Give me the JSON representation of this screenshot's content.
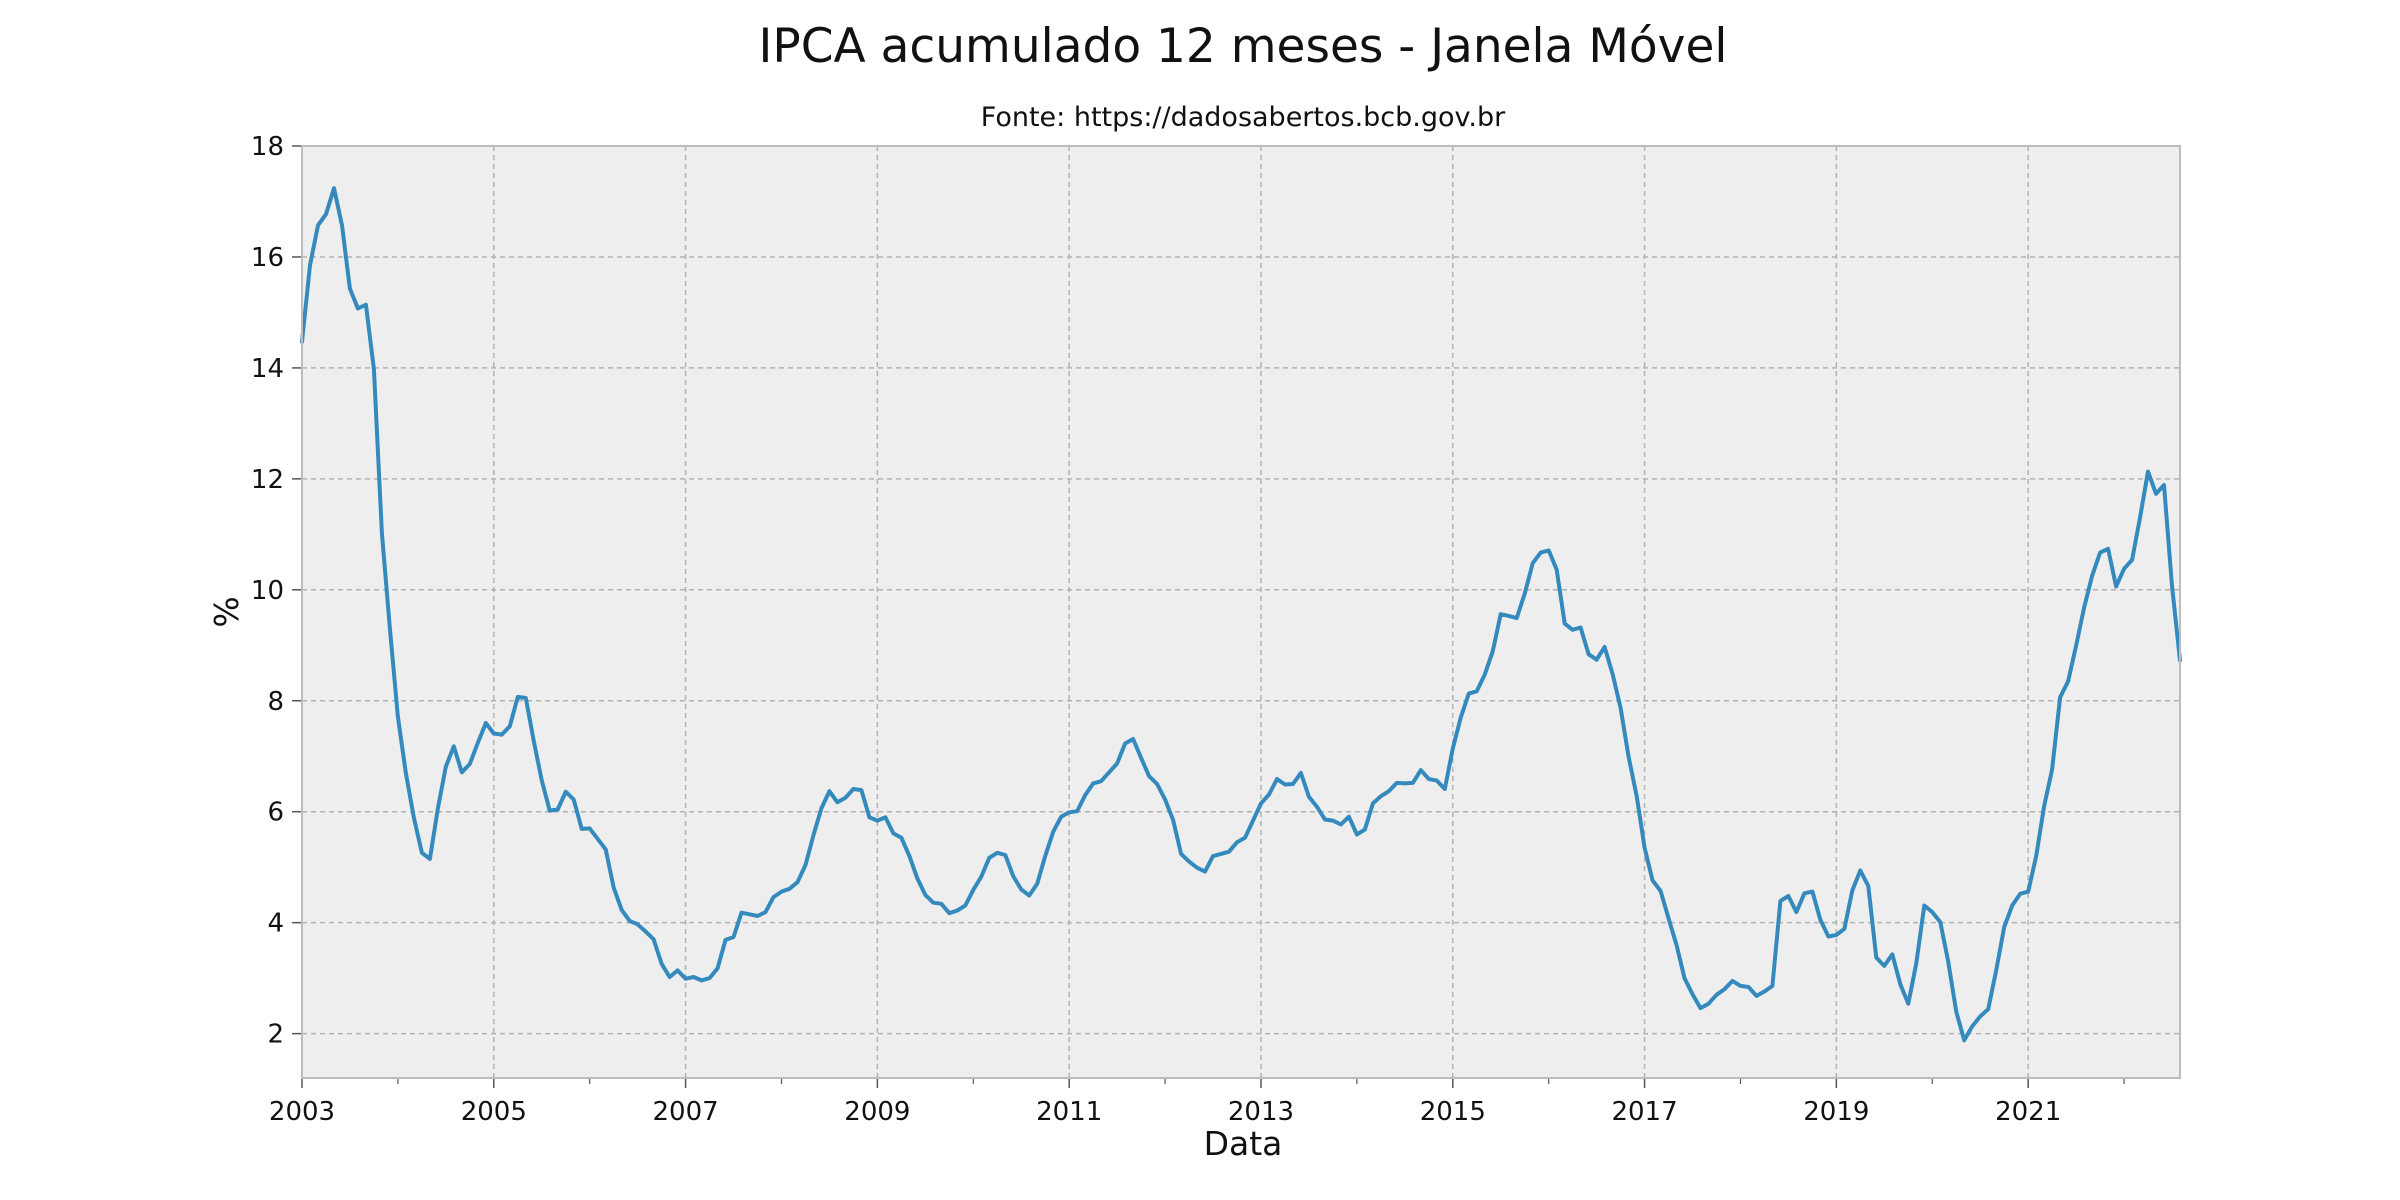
{
  "chart_data": {
    "type": "line",
    "title": "IPCA acumulado 12 meses - Janela Móvel",
    "subtitle": "Fonte: https://dadosabertos.bcb.gov.br",
    "xlabel": "Data",
    "ylabel": "%",
    "xlim": [
      "2003-01",
      "2022-08"
    ],
    "ylim": [
      1.2,
      18
    ],
    "x_ticks": [
      "2003",
      "2005",
      "2007",
      "2009",
      "2011",
      "2013",
      "2015",
      "2017",
      "2019",
      "2021"
    ],
    "y_ticks": [
      2,
      4,
      6,
      8,
      10,
      12,
      14,
      16,
      18
    ],
    "grid": true,
    "legend": "none",
    "series": [
      {
        "color": "#348abd",
        "x": [
          "2003-01",
          "2003-02",
          "2003-03",
          "2003-04",
          "2003-05",
          "2003-06",
          "2003-07",
          "2003-08",
          "2003-09",
          "2003-10",
          "2003-11",
          "2003-12",
          "2004-01",
          "2004-02",
          "2004-03",
          "2004-04",
          "2004-05",
          "2004-06",
          "2004-07",
          "2004-08",
          "2004-09",
          "2004-10",
          "2004-11",
          "2004-12",
          "2005-01",
          "2005-02",
          "2005-03",
          "2005-04",
          "2005-05",
          "2005-06",
          "2005-07",
          "2005-08",
          "2005-09",
          "2005-10",
          "2005-11",
          "2005-12",
          "2006-01",
          "2006-02",
          "2006-03",
          "2006-04",
          "2006-05",
          "2006-06",
          "2006-07",
          "2006-08",
          "2006-09",
          "2006-10",
          "2006-11",
          "2006-12",
          "2007-01",
          "2007-02",
          "2007-03",
          "2007-04",
          "2007-05",
          "2007-06",
          "2007-07",
          "2007-08",
          "2007-09",
          "2007-10",
          "2007-11",
          "2007-12",
          "2008-01",
          "2008-02",
          "2008-03",
          "2008-04",
          "2008-05",
          "2008-06",
          "2008-07",
          "2008-08",
          "2008-09",
          "2008-10",
          "2008-11",
          "2008-12",
          "2009-01",
          "2009-02",
          "2009-03",
          "2009-04",
          "2009-05",
          "2009-06",
          "2009-07",
          "2009-08",
          "2009-09",
          "2009-10",
          "2009-11",
          "2009-12",
          "2010-01",
          "2010-02",
          "2010-03",
          "2010-04",
          "2010-05",
          "2010-06",
          "2010-07",
          "2010-08",
          "2010-09",
          "2010-10",
          "2010-11",
          "2010-12",
          "2011-01",
          "2011-02",
          "2011-03",
          "2011-04",
          "2011-05",
          "2011-06",
          "2011-07",
          "2011-08",
          "2011-09",
          "2011-10",
          "2011-11",
          "2011-12",
          "2012-01",
          "2012-02",
          "2012-03",
          "2012-04",
          "2012-05",
          "2012-06",
          "2012-07",
          "2012-08",
          "2012-09",
          "2012-10",
          "2012-11",
          "2012-12",
          "2013-01",
          "2013-02",
          "2013-03",
          "2013-04",
          "2013-05",
          "2013-06",
          "2013-07",
          "2013-08",
          "2013-09",
          "2013-10",
          "2013-11",
          "2013-12",
          "2014-01",
          "2014-02",
          "2014-03",
          "2014-04",
          "2014-05",
          "2014-06",
          "2014-07",
          "2014-08",
          "2014-09",
          "2014-10",
          "2014-11",
          "2014-12",
          "2015-01",
          "2015-02",
          "2015-03",
          "2015-04",
          "2015-05",
          "2015-06",
          "2015-07",
          "2015-08",
          "2015-09",
          "2015-10",
          "2015-11",
          "2015-12",
          "2016-01",
          "2016-02",
          "2016-03",
          "2016-04",
          "2016-05",
          "2016-06",
          "2016-07",
          "2016-08",
          "2016-09",
          "2016-10",
          "2016-11",
          "2016-12",
          "2017-01",
          "2017-02",
          "2017-03",
          "2017-04",
          "2017-05",
          "2017-06",
          "2017-07",
          "2017-08",
          "2017-09",
          "2017-10",
          "2017-11",
          "2017-12",
          "2018-01",
          "2018-02",
          "2018-03",
          "2018-04",
          "2018-05",
          "2018-06",
          "2018-07",
          "2018-08",
          "2018-09",
          "2018-10",
          "2018-11",
          "2018-12",
          "2019-01",
          "2019-02",
          "2019-03",
          "2019-04",
          "2019-05",
          "2019-06",
          "2019-07",
          "2019-08",
          "2019-09",
          "2019-10",
          "2019-11",
          "2019-12",
          "2020-01",
          "2020-02",
          "2020-03",
          "2020-04",
          "2020-05",
          "2020-06",
          "2020-07",
          "2020-08",
          "2020-09",
          "2020-10",
          "2020-11",
          "2020-12",
          "2021-01",
          "2021-02",
          "2021-03",
          "2021-04",
          "2021-05",
          "2021-06",
          "2021-07",
          "2021-08",
          "2021-09",
          "2021-10",
          "2021-11",
          "2021-12",
          "2022-01",
          "2022-02",
          "2022-03",
          "2022-04",
          "2022-05",
          "2022-06",
          "2022-07",
          "2022-08"
        ],
        "values": [
          14.47,
          15.85,
          16.57,
          16.77,
          17.24,
          16.57,
          15.43,
          15.07,
          15.14,
          13.98,
          11.02,
          9.3,
          7.71,
          6.69,
          5.89,
          5.26,
          5.15,
          6.06,
          6.81,
          7.18,
          6.71,
          6.86,
          7.24,
          7.6,
          7.41,
          7.39,
          7.54,
          8.07,
          8.05,
          7.27,
          6.57,
          6.02,
          6.04,
          6.36,
          6.22,
          5.69,
          5.7,
          5.51,
          5.32,
          4.63,
          4.23,
          4.03,
          3.97,
          3.84,
          3.7,
          3.26,
          3.02,
          3.14,
          2.99,
          3.02,
          2.96,
          3.0,
          3.18,
          3.69,
          3.74,
          4.18,
          4.15,
          4.12,
          4.19,
          4.46,
          4.56,
          4.61,
          4.73,
          5.04,
          5.58,
          6.06,
          6.37,
          6.17,
          6.25,
          6.41,
          6.39,
          5.9,
          5.84,
          5.9,
          5.61,
          5.53,
          5.2,
          4.8,
          4.5,
          4.36,
          4.34,
          4.17,
          4.22,
          4.31,
          4.59,
          4.83,
          5.17,
          5.26,
          5.22,
          4.84,
          4.6,
          4.49,
          4.7,
          5.2,
          5.64,
          5.91,
          5.99,
          6.01,
          6.3,
          6.51,
          6.55,
          6.71,
          6.87,
          7.23,
          7.31,
          6.97,
          6.64,
          6.5,
          6.22,
          5.85,
          5.24,
          5.1,
          4.99,
          4.92,
          5.2,
          5.24,
          5.28,
          5.45,
          5.53,
          5.84,
          6.15,
          6.31,
          6.59,
          6.49,
          6.5,
          6.7,
          6.27,
          6.09,
          5.86,
          5.84,
          5.77,
          5.91,
          5.59,
          5.68,
          6.15,
          6.28,
          6.37,
          6.52,
          6.51,
          6.52,
          6.75,
          6.59,
          6.56,
          6.41,
          7.14,
          7.7,
          8.13,
          8.17,
          8.47,
          8.89,
          9.56,
          9.53,
          9.49,
          9.93,
          10.48,
          10.67,
          10.71,
          10.36,
          9.39,
          9.28,
          9.32,
          8.84,
          8.74,
          8.97,
          8.48,
          7.87,
          6.99,
          6.29,
          5.35,
          4.76,
          4.57,
          4.08,
          3.6,
          3.0,
          2.71,
          2.46,
          2.54,
          2.7,
          2.8,
          2.95,
          2.86,
          2.84,
          2.68,
          2.76,
          2.86,
          4.39,
          4.48,
          4.19,
          4.53,
          4.56,
          4.05,
          3.75,
          3.78,
          3.89,
          4.58,
          4.94,
          4.66,
          3.37,
          3.22,
          3.43,
          2.89,
          2.54,
          3.27,
          4.31,
          4.19,
          4.01,
          3.3,
          2.4,
          1.88,
          2.13,
          2.31,
          2.44,
          3.14,
          3.92,
          4.31,
          4.52,
          4.56,
          5.2,
          6.1,
          6.76,
          8.06,
          8.35,
          8.99,
          9.68,
          10.25,
          10.67,
          10.74,
          10.06,
          10.38,
          10.54,
          11.3,
          12.13,
          11.73,
          11.89,
          10.07,
          8.73
        ]
      }
    ]
  }
}
